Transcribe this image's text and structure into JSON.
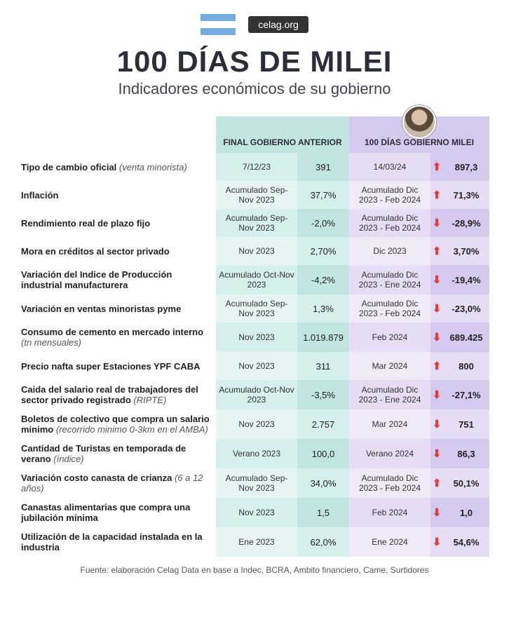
{
  "header": {
    "site": "celag.org",
    "title": "100 DÍAS DE MILEI",
    "subtitle": "Indicadores económicos de su gobierno"
  },
  "columns": {
    "prev_label": "FINAL GOBIERNO ANTERIOR",
    "cur_label": "100 DÍAS GOBIERNO MILEI"
  },
  "colors": {
    "prev_h1": "#c1e6e2",
    "prev_h2": "#d4efec",
    "prev_a1": "#d4efec",
    "prev_a2": "#e6f5f3",
    "prev_b1": "#c1e6e2",
    "prev_b2": "#d4efec",
    "cur_h1": "#d6c9ef",
    "cur_h2": "#e6ddf5",
    "cur_a1": "#e6ddf5",
    "cur_a2": "#f0eaf8",
    "cur_b1": "#d6c9ef",
    "cur_b2": "#e6ddf5",
    "arrow": "#e03c3c"
  },
  "rows": [
    {
      "main": "Tipo de cambio oficial",
      "sub": " (venta minorista)",
      "prev_period": "7/12/23",
      "prev_val": "391",
      "cur_period": "14/03/24",
      "dir": "up",
      "cur_val": "897,3"
    },
    {
      "main": "Inflación",
      "sub": "",
      "prev_period": "Acumulado Sep-Nov 2023",
      "prev_val": "37,7%",
      "cur_period": "Acumulado Dic 2023 - Feb 2024",
      "dir": "up",
      "cur_val": "71,3%"
    },
    {
      "main": "Rendimiento real de plazo fijo",
      "sub": "",
      "prev_period": "Acumulado Sep-Nov 2023",
      "prev_val": "-2,0%",
      "cur_period": "Acumulado Dic 2023 - Feb 2024",
      "dir": "down",
      "cur_val": "-28,9%"
    },
    {
      "main": "Mora en créditos al sector privado",
      "sub": "",
      "prev_period": "Nov 2023",
      "prev_val": "2,70%",
      "cur_period": "Dic 2023",
      "dir": "up",
      "cur_val": "3,70%"
    },
    {
      "main": "Variación del Indice de Producción industrial manufacturera",
      "sub": "",
      "prev_period": "Acumulado Oct-Nov 2023",
      "prev_val": "-4,2%",
      "cur_period": "Acumulado Dic 2023 - Ene 2024",
      "dir": "down",
      "cur_val": "-19,4%"
    },
    {
      "main": "Variación en ventas minoristas pyme",
      "sub": "",
      "prev_period": "Acumulado Sep-Nov 2023",
      "prev_val": "1,3%",
      "cur_period": "Acumulado Dic 2023 - Feb 2024",
      "dir": "down",
      "cur_val": "-23,0%"
    },
    {
      "main": "Consumo de cemento en mercado interno",
      "sub": " (tn mensuales)",
      "prev_period": "Nov 2023",
      "prev_val": "1.019.879",
      "cur_period": "Feb 2024",
      "dir": "down",
      "cur_val": "689.425"
    },
    {
      "main": "Precio nafta super Estaciones YPF CABA",
      "sub": "",
      "prev_period": "Nov 2023",
      "prev_val": "311",
      "cur_period": "Mar 2024",
      "dir": "up",
      "cur_val": "800"
    },
    {
      "main": "Caida del salario real de trabajadores del sector privado registrado",
      "sub": " (RIPTE)",
      "prev_period": "Acumulado Oct-Nov 2023",
      "prev_val": "-3,5%",
      "cur_period": "Acumulado Dic 2023 - Ene 2024",
      "dir": "down",
      "cur_val": "-27,1%"
    },
    {
      "main": "Boletos de colectivo que compra un salario minimo",
      "sub": " (recorrido minimo 0-3km en el AMBA)",
      "prev_period": "Nov 2023",
      "prev_val": "2.757",
      "cur_period": "Mar 2024",
      "dir": "down",
      "cur_val": "751"
    },
    {
      "main": "Cantidad de Turistas en temporada de verano",
      "sub": " (índice)",
      "prev_period": "Verano 2023",
      "prev_val": "100,0",
      "cur_period": "Verano 2024",
      "dir": "down",
      "cur_val": "86,3"
    },
    {
      "main": "Variación costo canasta de crianza",
      "sub": " (6 a 12 años)",
      "prev_period": "Acumulado Sep-Nov 2023",
      "prev_val": "34,0%",
      "cur_period": "Acumulado Dic 2023 - Feb 2024",
      "dir": "up",
      "cur_val": "50,1%"
    },
    {
      "main": "Canastas alimentarias que compra una jubilación mínima",
      "sub": "",
      "prev_period": "Nov 2023",
      "prev_val": "1,5",
      "cur_period": "Feb 2024",
      "dir": "down",
      "cur_val": "1,0"
    },
    {
      "main": "Utilización de la capacidad instalada en la industria",
      "sub": "",
      "prev_period": "Ene 2023",
      "prev_val": "62,0%",
      "cur_period": "Ene 2024",
      "dir": "down",
      "cur_val": "54,6%"
    }
  ],
  "source": "Fuente: elaboración Celag Data en base a Indec, BCRA, Ambito financiero, Came, Surtidores"
}
